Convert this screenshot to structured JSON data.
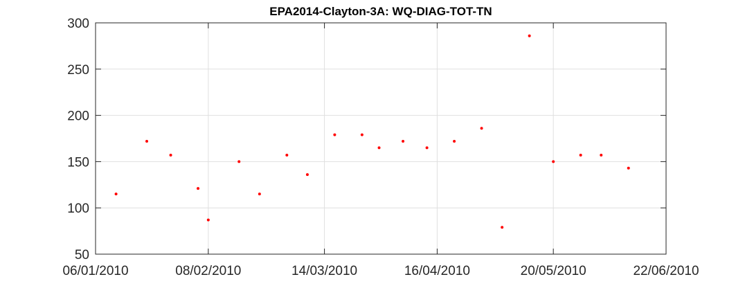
{
  "chart_data": {
    "type": "scatter",
    "title": "EPA2014-Clayton-3A: WQ-DIAG-TOT-TN",
    "xlabel": "",
    "ylabel": "",
    "x_axis_type": "date",
    "xlim": [
      "2010-01-06",
      "2010-06-22"
    ],
    "ylim": [
      50,
      300
    ],
    "x_ticks": [
      {
        "date": "2010-01-06",
        "label": "06/01/2010"
      },
      {
        "date": "2010-02-08",
        "label": "08/02/2010"
      },
      {
        "date": "2010-03-14",
        "label": "14/03/2010"
      },
      {
        "date": "2010-04-16",
        "label": "16/04/2010"
      },
      {
        "date": "2010-05-20",
        "label": "20/05/2010"
      },
      {
        "date": "2010-06-22",
        "label": "22/06/2010"
      }
    ],
    "y_ticks": [
      {
        "value": 50,
        "label": "50"
      },
      {
        "value": 100,
        "label": "100"
      },
      {
        "value": 150,
        "label": "150"
      },
      {
        "value": 200,
        "label": "200"
      },
      {
        "value": 250,
        "label": "250"
      },
      {
        "value": 300,
        "label": "300"
      }
    ],
    "grid": true,
    "marker_color": "#ff0000",
    "series": [
      {
        "points": [
          {
            "x": "2010-01-12",
            "y": 115
          },
          {
            "x": "2010-01-21",
            "y": 172
          },
          {
            "x": "2010-01-28",
            "y": 157
          },
          {
            "x": "2010-02-05",
            "y": 121
          },
          {
            "x": "2010-02-08",
            "y": 87
          },
          {
            "x": "2010-02-17",
            "y": 150
          },
          {
            "x": "2010-02-23",
            "y": 115
          },
          {
            "x": "2010-03-03",
            "y": 157
          },
          {
            "x": "2010-03-09",
            "y": 136
          },
          {
            "x": "2010-03-17",
            "y": 179
          },
          {
            "x": "2010-03-25",
            "y": 179
          },
          {
            "x": "2010-03-30",
            "y": 165
          },
          {
            "x": "2010-04-06",
            "y": 172
          },
          {
            "x": "2010-04-13",
            "y": 165
          },
          {
            "x": "2010-04-21",
            "y": 172
          },
          {
            "x": "2010-04-29",
            "y": 186
          },
          {
            "x": "2010-05-05",
            "y": 79
          },
          {
            "x": "2010-05-13",
            "y": 286
          },
          {
            "x": "2010-05-20",
            "y": 150
          },
          {
            "x": "2010-05-28",
            "y": 157
          },
          {
            "x": "2010-06-03",
            "y": 157
          },
          {
            "x": "2010-06-11",
            "y": 143
          }
        ]
      }
    ]
  }
}
